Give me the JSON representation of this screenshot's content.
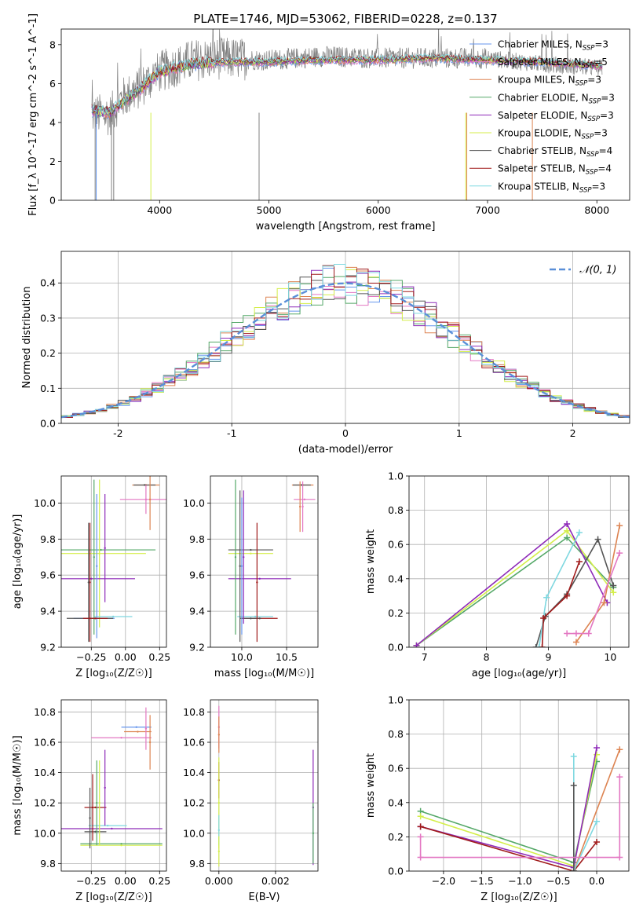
{
  "figure_title": "PLATE=1746, MJD=53062, FIBERID=0228, z=0.137",
  "legend_series": [
    {
      "name": "Chabrier MILES, N$_{SSP}$=3",
      "main": "Chabrier MILES, N",
      "sub": "SSP",
      "tail": "=3",
      "color": "#6495ed"
    },
    {
      "name": "Salpeter MILES, N$_{SSP}$=5",
      "main": "Salpeter MILES, N",
      "sub": "SSP",
      "tail": "=5",
      "color": "#e377c2"
    },
    {
      "name": "Kroupa MILES, N$_{SSP}$=3",
      "main": "Kroupa MILES, N",
      "sub": "SSP",
      "tail": "=3",
      "color": "#dd8452"
    },
    {
      "name": "Chabrier ELODIE, N$_{SSP}$=3",
      "main": "Chabrier ELODIE, N",
      "sub": "SSP",
      "tail": "=3",
      "color": "#55a868"
    },
    {
      "name": "Salpeter ELODIE, N$_{SSP}$=3",
      "main": "Salpeter ELODIE, N",
      "sub": "SSP",
      "tail": "=3",
      "color": "#8e2ab8"
    },
    {
      "name": "Kroupa ELODIE, N$_{SSP}$=3",
      "main": "Kroupa ELODIE, N",
      "sub": "SSP",
      "tail": "=3",
      "color": "#d4ee4a"
    },
    {
      "name": "Chabrier STELIB, N$_{SSP}$=4",
      "main": "Chabrier STELIB, N",
      "sub": "SSP",
      "tail": "=4",
      "color": "#555555"
    },
    {
      "name": "Salpeter STELIB, N$_{SSP}$=4",
      "main": "Salpeter STELIB, N",
      "sub": "SSP",
      "tail": "=4",
      "color": "#a01a1a"
    },
    {
      "name": "Kroupa STELIB, N$_{SSP}$=3",
      "main": "Kroupa STELIB, N",
      "sub": "SSP",
      "tail": "=3",
      "color": "#7fd8e0"
    }
  ],
  "chart_data": [
    {
      "id": "spectrum",
      "type": "line",
      "xlabel": "wavelength [Angstrom, rest frame]",
      "ylabel": "Flux [f_λ 10^-17 erg cm^-2 s^-1 A^-1]",
      "xlim": [
        3100,
        8300
      ],
      "ylim": [
        0,
        8.8
      ],
      "xticks": [
        4000,
        5000,
        6000,
        7000,
        8000
      ],
      "yticks": [
        0,
        2,
        4,
        6,
        8
      ],
      "data_color": "#808080",
      "data_anchors": {
        "x": [
          3380,
          3550,
          3650,
          3800,
          4000,
          4300,
          4600,
          5000,
          5500,
          6000,
          6500,
          7000,
          7500,
          8050
        ],
        "y": [
          4.4,
          4.4,
          5.2,
          5.7,
          6.6,
          7.2,
          7.3,
          7.2,
          7.4,
          7.3,
          7.3,
          7.3,
          7.0,
          6.8
        ]
      },
      "model_anchors": {
        "x": [
          3380,
          3550,
          3650,
          3800,
          4000,
          4300,
          4600,
          5000,
          5500,
          6000,
          6500,
          7000,
          7500,
          8050
        ],
        "y": [
          4.6,
          4.5,
          5.0,
          5.6,
          6.6,
          7.0,
          7.1,
          7.1,
          7.2,
          7.2,
          7.3,
          7.2,
          7.1,
          6.9
        ]
      },
      "drops": [
        {
          "x": 3410,
          "color": "#808080"
        },
        {
          "x": 3420,
          "color": "#6495ed"
        },
        {
          "x": 3560,
          "color": "#808080"
        },
        {
          "x": 3580,
          "color": "#808080"
        },
        {
          "x": 3920,
          "color": "#d4ee4a"
        },
        {
          "x": 4910,
          "color": "#808080"
        },
        {
          "x": 6800,
          "color": "#d4ee4a"
        },
        {
          "x": 6810,
          "color": "#dd8452"
        },
        {
          "x": 7410,
          "color": "#dd8452"
        }
      ]
    },
    {
      "id": "residuals",
      "type": "step",
      "xlabel": "(data-model)/error",
      "ylabel": "Normed distribution",
      "xlim": [
        -2.5,
        2.5
      ],
      "ylim": [
        0,
        0.49
      ],
      "xticks": [
        -2,
        -1,
        0,
        1,
        2
      ],
      "yticks": [
        0.0,
        0.1,
        0.2,
        0.3,
        0.4
      ],
      "grid": true,
      "legend": {
        "label": "𝒩(0, 1)",
        "placement": "top-right",
        "color": "#5a8fd8"
      },
      "bin_width": 0.1,
      "bin_start": -2.5
    },
    {
      "id": "age-vs-Z",
      "type": "errorbar",
      "xlabel": "Z [log₁₀(Z/Z☉)]",
      "ylabel": "age  [log₁₀(age/yr)]",
      "xlim": [
        -0.47,
        0.3
      ],
      "ylim": [
        9.2,
        10.15
      ],
      "xticks": [
        -0.25,
        0.0,
        0.25
      ],
      "xticklabels": [
        "−0.25",
        "0.00",
        "0.25"
      ],
      "yticks": [
        9.2,
        9.4,
        9.6,
        9.8,
        10.0
      ],
      "yticklabels": [
        "9.2",
        "9.4",
        "9.6",
        "9.8",
        "10.0"
      ],
      "grid": true,
      "points": [
        {
          "x": 0.15,
          "y": 10.1,
          "xe": 0.1,
          "ye": 0.0,
          "c": "#dd8452"
        },
        {
          "x": 0.14,
          "y": 10.1,
          "xe": 0.08,
          "ye": 0.0,
          "c": "#555555"
        },
        {
          "x": 0.15,
          "y": 10.02,
          "xe": 0.19,
          "ye": 0.08,
          "c": "#e377c2"
        },
        {
          "x": 0.18,
          "y": 10.02,
          "xe": 0.0,
          "ye": 0.17,
          "c": "#dd8452"
        },
        {
          "x": -0.18,
          "y": 9.74,
          "xe": 0.4,
          "ye": 0.0,
          "c": "#55a868"
        },
        {
          "x": -0.19,
          "y": 9.72,
          "xe": 0.34,
          "ye": 0.41,
          "c": "#d4ee4a"
        },
        {
          "x": -0.25,
          "y": 9.58,
          "xe": 0.32,
          "ye": 0.0,
          "c": "#8e2ab8"
        },
        {
          "x": -0.23,
          "y": 9.36,
          "xe": 0.15,
          "ye": 0.0,
          "c": "#6495ed"
        },
        {
          "x": -0.26,
          "y": 9.36,
          "xe": 0.17,
          "ye": 0.0,
          "c": "#555555"
        },
        {
          "x": -0.09,
          "y": 9.37,
          "xe": 0.14,
          "ye": 0.0,
          "c": "#7fd8e0"
        },
        {
          "x": -0.26,
          "y": 9.56,
          "xe": 0.0,
          "ye": 0.33,
          "c": "#a01a1a"
        },
        {
          "x": -0.27,
          "y": 9.56,
          "xe": 0.0,
          "ye": 0.33,
          "c": "#555555"
        },
        {
          "x": -0.23,
          "y": 9.7,
          "xe": 0.0,
          "ye": 0.43,
          "c": "#55a868"
        },
        {
          "x": -0.21,
          "y": 9.65,
          "xe": 0.0,
          "ye": 0.4,
          "c": "#6495ed"
        },
        {
          "x": -0.15,
          "y": 9.75,
          "xe": 0.0,
          "ye": 0.3,
          "c": "#8e2ab8"
        },
        {
          "x": -0.22,
          "y": 9.36,
          "xe": 0.09,
          "ye": 0.0,
          "c": "#a01a1a"
        }
      ]
    },
    {
      "id": "age-vs-mass",
      "type": "errorbar",
      "xlabel": "mass [log₁₀(M/M☉)]",
      "xlim": [
        9.65,
        10.85
      ],
      "ylim": [
        9.2,
        10.15
      ],
      "xticks": [
        10.0,
        10.5
      ],
      "xticklabels": [
        "10.0",
        "10.5"
      ],
      "yticks": [
        9.2,
        9.4,
        9.6,
        9.8,
        10.0
      ],
      "yticklabels": [
        "9.2",
        "9.4",
        "9.6",
        "9.8",
        "10.0"
      ],
      "grid": true,
      "points": [
        {
          "x": 10.68,
          "y": 10.1,
          "xe": 0.12,
          "ye": 0.0,
          "c": "#dd8452"
        },
        {
          "x": 10.67,
          "y": 10.1,
          "xe": 0.1,
          "ye": 0.0,
          "c": "#555555"
        },
        {
          "x": 10.7,
          "y": 10.02,
          "xe": 0.12,
          "ye": 0.0,
          "c": "#e377c2"
        },
        {
          "x": 10.65,
          "y": 9.98,
          "xe": 0.0,
          "ye": 0.14,
          "c": "#dd8452"
        },
        {
          "x": 10.68,
          "y": 9.98,
          "xe": 0.0,
          "ye": 0.14,
          "c": "#e377c2"
        },
        {
          "x": 10.1,
          "y": 9.74,
          "xe": 0.25,
          "ye": 0.0,
          "c": "#555555"
        },
        {
          "x": 10.1,
          "y": 9.72,
          "xe": 0.25,
          "ye": 0.0,
          "c": "#d4ee4a"
        },
        {
          "x": 10.2,
          "y": 9.58,
          "xe": 0.35,
          "ye": 0.0,
          "c": "#8e2ab8"
        },
        {
          "x": 10.15,
          "y": 9.37,
          "xe": 0.2,
          "ye": 0.0,
          "c": "#7fd8e0"
        },
        {
          "x": 10.2,
          "y": 9.36,
          "xe": 0.2,
          "ye": 0.0,
          "c": "#a01a1a"
        },
        {
          "x": 10.1,
          "y": 9.36,
          "xe": 0.12,
          "ye": 0.0,
          "c": "#555555"
        },
        {
          "x": 9.93,
          "y": 9.7,
          "xe": 0.0,
          "ye": 0.43,
          "c": "#55a868"
        },
        {
          "x": 9.98,
          "y": 9.65,
          "xe": 0.0,
          "ye": 0.42,
          "c": "#555555"
        },
        {
          "x": 10.02,
          "y": 9.7,
          "xe": 0.0,
          "ye": 0.37,
          "c": "#8e2ab8"
        },
        {
          "x": 10.0,
          "y": 9.65,
          "xe": 0.0,
          "ye": 0.38,
          "c": "#6495ed"
        },
        {
          "x": 10.17,
          "y": 9.56,
          "xe": 0.0,
          "ye": 0.33,
          "c": "#a01a1a"
        }
      ]
    },
    {
      "id": "weight-vs-age",
      "type": "line",
      "xlabel": "age  [log₁₀(age/yr)]",
      "ylabel": "mass weight",
      "xlim": [
        6.75,
        10.3
      ],
      "ylim": [
        0,
        1.0
      ],
      "xticks": [
        7,
        8,
        9,
        10
      ],
      "xticklabels": [
        "7",
        "8",
        "9",
        "10"
      ],
      "yticks": [
        0.0,
        0.2,
        0.4,
        0.6,
        0.8,
        1.0
      ],
      "yticklabels": [
        "0.0",
        "0.2",
        "0.4",
        "0.6",
        "0.8",
        "1.0"
      ],
      "grid": true,
      "series": [
        {
          "c": "#55a868",
          "x": [
            6.87,
            9.3,
            10.05
          ],
          "y": [
            0.01,
            0.64,
            0.35
          ]
        },
        {
          "c": "#d4ee4a",
          "x": [
            6.87,
            9.3,
            10.05
          ],
          "y": [
            0.01,
            0.68,
            0.32
          ]
        },
        {
          "c": "#8e2ab8",
          "x": [
            6.87,
            9.3,
            9.95
          ],
          "y": [
            0.01,
            0.72,
            0.26
          ]
        },
        {
          "c": "#555555",
          "x": [
            8.8,
            8.95,
            9.3,
            9.8,
            10.05
          ],
          "y": [
            0.0,
            0.18,
            0.31,
            0.63,
            0.36
          ]
        },
        {
          "c": "#7fd8e0",
          "x": [
            8.85,
            8.97,
            9.5
          ],
          "y": [
            0.0,
            0.29,
            0.67
          ]
        },
        {
          "c": "#a01a1a",
          "x": [
            8.9,
            8.92,
            9.3,
            9.5
          ],
          "y": [
            0.0,
            0.17,
            0.3,
            0.5
          ]
        },
        {
          "c": "#dd8452",
          "x": [
            9.45,
            9.9,
            10.15
          ],
          "y": [
            0.03,
            0.26,
            0.71
          ]
        },
        {
          "c": "#e377c2",
          "x": [
            9.3,
            9.45,
            9.65,
            10.15
          ],
          "y": [
            0.08,
            0.08,
            0.08,
            0.55
          ]
        }
      ]
    },
    {
      "id": "mass-vs-Z",
      "type": "errorbar",
      "xlabel": "Z [log₁₀(Z/Z☉)]",
      "ylabel": "mass [log₁₀(M/M☉)]",
      "xlim": [
        -0.47,
        0.3
      ],
      "ylim": [
        9.75,
        10.88
      ],
      "xticks": [
        -0.25,
        0.0,
        0.25
      ],
      "xticklabels": [
        "−0.25",
        "0.00",
        "0.25"
      ],
      "yticks": [
        9.8,
        10.0,
        10.2,
        10.4,
        10.6,
        10.8
      ],
      "yticklabels": [
        "9.8",
        "10.0",
        "10.2",
        "10.4",
        "10.6",
        "10.8"
      ],
      "grid": true,
      "points": [
        {
          "x": 0.08,
          "y": 10.7,
          "xe": 0.11,
          "ye": 0.0,
          "c": "#6495ed"
        },
        {
          "x": 0.09,
          "y": 10.67,
          "xe": 0.1,
          "ye": 0.0,
          "c": "#dd8452"
        },
        {
          "x": -0.03,
          "y": 10.63,
          "xe": 0.22,
          "ye": 0.0,
          "c": "#e377c2"
        },
        {
          "x": 0.15,
          "y": 10.69,
          "xe": 0.0,
          "ye": 0.14,
          "c": "#e377c2"
        },
        {
          "x": 0.18,
          "y": 10.6,
          "xe": 0.0,
          "ye": 0.18,
          "c": "#dd8452"
        },
        {
          "x": -0.13,
          "y": 10.05,
          "xe": 0.14,
          "ye": 0.0,
          "c": "#7fd8e0"
        },
        {
          "x": -0.1,
          "y": 10.03,
          "xe": 0.37,
          "ye": 0.0,
          "c": "#8e2ab8"
        },
        {
          "x": -0.22,
          "y": 10.01,
          "xe": 0.08,
          "ye": 0.0,
          "c": "#555555"
        },
        {
          "x": -0.22,
          "y": 10.17,
          "xe": 0.08,
          "ye": 0.0,
          "c": "#a01a1a"
        },
        {
          "x": -0.03,
          "y": 9.93,
          "xe": 0.3,
          "ye": 0.0,
          "c": "#55a868"
        },
        {
          "x": -0.03,
          "y": 9.92,
          "xe": 0.3,
          "ye": 0.0,
          "c": "#d4ee4a"
        },
        {
          "x": -0.24,
          "y": 10.17,
          "xe": 0.0,
          "ye": 0.22,
          "c": "#a01a1a"
        },
        {
          "x": -0.21,
          "y": 10.2,
          "xe": 0.0,
          "ye": 0.28,
          "c": "#55a868"
        },
        {
          "x": -0.19,
          "y": 10.2,
          "xe": 0.0,
          "ye": 0.28,
          "c": "#d4ee4a"
        },
        {
          "x": -0.15,
          "y": 10.3,
          "xe": 0.0,
          "ye": 0.25,
          "c": "#8e2ab8"
        },
        {
          "x": -0.26,
          "y": 10.1,
          "xe": 0.0,
          "ye": 0.2,
          "c": "#555555"
        }
      ]
    },
    {
      "id": "mass-vs-ebv",
      "type": "errorbar",
      "xlabel": "E(B-V)",
      "xlim": [
        -0.0003,
        0.0035
      ],
      "ylim": [
        9.75,
        10.88
      ],
      "xticks": [
        0.0,
        0.002
      ],
      "xticklabels": [
        "0.000",
        "0.002"
      ],
      "yticks": [
        9.8,
        10.0,
        10.2,
        10.4,
        10.6,
        10.8
      ],
      "yticklabels": [
        "9.8",
        "10.0",
        "10.2",
        "10.4",
        "10.6",
        "10.8"
      ],
      "grid": true,
      "points": [
        {
          "x": 0.0,
          "y": 10.7,
          "xe": 0.0,
          "ye": 0.14,
          "c": "#e377c2"
        },
        {
          "x": 0.0,
          "y": 10.65,
          "xe": 0.0,
          "ye": 0.12,
          "c": "#dd8452"
        },
        {
          "x": 0.0,
          "y": 10.35,
          "xe": 0.0,
          "ye": 0.12,
          "c": "#a01a1a"
        },
        {
          "x": 0.0,
          "y": 10.2,
          "xe": 0.0,
          "ye": 0.3,
          "c": "#d4ee4a"
        },
        {
          "x": 0.0,
          "y": 10.02,
          "xe": 0.0,
          "ye": 0.1,
          "c": "#7fd8e0"
        },
        {
          "x": 0.0,
          "y": 9.88,
          "xe": 0.0,
          "ye": 0.1,
          "c": "#d4ee4a"
        },
        {
          "x": 0.00333,
          "y": 10.17,
          "xe": 0.0,
          "ye": 0.38,
          "c": "#8e2ab8"
        },
        {
          "x": 0.00333,
          "y": 10.0,
          "xe": 0.0,
          "ye": 0.2,
          "c": "#55a868"
        }
      ]
    },
    {
      "id": "weight-vs-Z",
      "type": "line",
      "xlabel": "Z [log₁₀(Z/Z☉)]",
      "ylabel": "mass weight",
      "xlim": [
        -2.45,
        0.42
      ],
      "ylim": [
        0,
        1.0
      ],
      "xticks": [
        -2.0,
        -1.5,
        -1.0,
        -0.5,
        0.0
      ],
      "xticklabels": [
        "−2.0",
        "−1.5",
        "−1.0",
        "−0.5",
        "0.0"
      ],
      "yticks": [
        0.0,
        0.2,
        0.4,
        0.6,
        0.8,
        1.0
      ],
      "yticklabels": [
        "0.0",
        "0.2",
        "0.4",
        "0.6",
        "0.8",
        "1.0"
      ],
      "grid": true,
      "series": [
        {
          "c": "#55a868",
          "x": [
            -2.3,
            -0.3,
            0.0
          ],
          "y": [
            0.35,
            0.05,
            0.64
          ]
        },
        {
          "c": "#d4ee4a",
          "x": [
            -2.3,
            -0.3,
            0.0
          ],
          "y": [
            0.32,
            0.03,
            0.68
          ]
        },
        {
          "c": "#8e2ab8",
          "x": [
            -2.3,
            -0.3,
            0.0
          ],
          "y": [
            0.26,
            0.02,
            0.72
          ]
        },
        {
          "c": "#a01a1a",
          "x": [
            -2.3,
            -0.3,
            0.0
          ],
          "y": [
            0.26,
            0.0,
            0.17
          ]
        },
        {
          "c": "#dd8452",
          "x": [
            -0.3,
            0.3
          ],
          "y": [
            0.0,
            0.71
          ]
        },
        {
          "c": "#7fd8e0",
          "x": [
            -0.3,
            -0.3,
            0.0
          ],
          "y": [
            0.67,
            0.0,
            0.29
          ]
        },
        {
          "c": "#555555",
          "x": [
            -0.3,
            -0.3
          ],
          "y": [
            0.5,
            0.0
          ]
        },
        {
          "c": "#e377c2",
          "x": [
            -2.3,
            -2.3,
            0.3,
            0.3
          ],
          "y": [
            0.2,
            0.08,
            0.08,
            0.55
          ]
        }
      ]
    }
  ]
}
